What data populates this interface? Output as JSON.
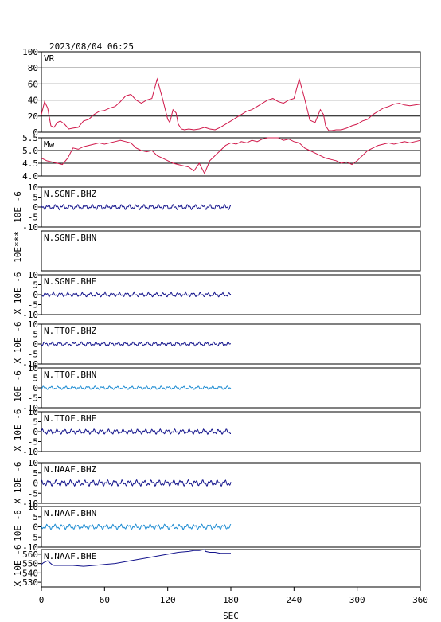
{
  "header": {
    "timestamp": "2023/08/04 06:25"
  },
  "colors": {
    "vr": "#d0184a",
    "mw": "#d0184a",
    "dark_trace": "#14148c",
    "light_trace": "#1e8cd2",
    "frame": "#000000"
  },
  "chart_data": [
    {
      "type": "line",
      "panel_label": "VR",
      "ylim": [
        0,
        100
      ],
      "y_ticks": [
        "100",
        "80",
        "60",
        "40",
        "20",
        "0"
      ],
      "grid": true,
      "x": [
        0,
        3,
        6,
        9,
        12,
        15,
        18,
        22,
        26,
        30,
        35,
        40,
        45,
        50,
        55,
        60,
        65,
        70,
        75,
        80,
        85,
        90,
        95,
        100,
        105,
        110,
        115,
        120,
        122,
        125,
        128,
        130,
        133,
        136,
        140,
        145,
        150,
        155,
        160,
        165,
        170,
        175,
        180,
        185,
        190,
        195,
        200,
        205,
        210,
        215,
        220,
        225,
        230,
        235,
        240,
        245,
        250,
        255,
        260,
        265,
        268,
        270,
        273,
        276,
        280,
        285,
        290,
        295,
        300,
        305,
        310,
        315,
        320,
        325,
        330,
        335,
        340,
        345,
        350,
        355,
        360
      ],
      "values": [
        22,
        38,
        30,
        8,
        6,
        12,
        14,
        10,
        4,
        5,
        6,
        14,
        16,
        22,
        26,
        27,
        30,
        32,
        38,
        45,
        47,
        40,
        36,
        40,
        42,
        66,
        42,
        16,
        12,
        28,
        24,
        10,
        4,
        3,
        4,
        3,
        4,
        6,
        4,
        3,
        6,
        10,
        14,
        18,
        22,
        26,
        28,
        32,
        36,
        40,
        42,
        38,
        36,
        40,
        42,
        66,
        42,
        15,
        12,
        28,
        22,
        8,
        2,
        2,
        3,
        3,
        5,
        8,
        10,
        14,
        16,
        22,
        26,
        30,
        32,
        35,
        36,
        34,
        33,
        34,
        35
      ]
    },
    {
      "type": "line",
      "panel_label": "Mw",
      "ylim": [
        4.0,
        5.5
      ],
      "y_ticks": [
        "5.5",
        "5.0",
        "4.5",
        "4.0"
      ],
      "grid": true,
      "x": [
        0,
        5,
        10,
        15,
        20,
        25,
        30,
        35,
        40,
        45,
        50,
        55,
        60,
        65,
        70,
        75,
        80,
        85,
        90,
        95,
        100,
        105,
        110,
        115,
        120,
        125,
        130,
        135,
        140,
        145,
        150,
        155,
        160,
        165,
        170,
        175,
        180,
        185,
        190,
        195,
        200,
        205,
        210,
        215,
        220,
        225,
        230,
        235,
        240,
        245,
        250,
        255,
        260,
        265,
        270,
        275,
        280,
        285,
        290,
        295,
        300,
        305,
        310,
        315,
        320,
        325,
        330,
        335,
        340,
        345,
        350,
        355,
        360
      ],
      "values": [
        4.7,
        4.6,
        4.55,
        4.5,
        4.45,
        4.7,
        5.1,
        5.05,
        5.15,
        5.2,
        5.25,
        5.3,
        5.25,
        5.3,
        5.35,
        5.4,
        5.35,
        5.3,
        5.1,
        5.0,
        4.95,
        5.0,
        4.8,
        4.7,
        4.6,
        4.5,
        4.45,
        4.4,
        4.35,
        4.2,
        4.5,
        4.1,
        4.6,
        4.8,
        5.0,
        5.2,
        5.3,
        5.25,
        5.35,
        5.3,
        5.4,
        5.35,
        5.45,
        5.5,
        5.55,
        5.5,
        5.4,
        5.45,
        5.35,
        5.3,
        5.1,
        5.0,
        4.9,
        4.8,
        4.7,
        4.65,
        4.6,
        4.5,
        4.55,
        4.45,
        4.6,
        4.8,
        5.0,
        5.1,
        5.2,
        5.25,
        5.3,
        5.25,
        5.3,
        5.35,
        5.3,
        5.35,
        5.4
      ]
    },
    {
      "type": "line",
      "panel_label": "N.SGNF.BHZ",
      "ylim": [
        -10,
        10
      ],
      "y_ticks": [
        "10",
        "5",
        "0",
        "-5",
        "-10"
      ],
      "trace": "wave",
      "trace_color": "dark",
      "amplitude": 0.6,
      "trace_end_sec": 180
    },
    {
      "type": "line",
      "panel_label": "N.SGNF.BHN",
      "ylim": [
        -10,
        10
      ],
      "y_ticks": [],
      "trace": "none"
    },
    {
      "type": "line",
      "panel_label": "N.SGNF.BHE",
      "ylim": [
        -10,
        10
      ],
      "y_ticks": [
        "10",
        "5",
        "0",
        "-5",
        "-10"
      ],
      "trace": "wave",
      "trace_color": "dark",
      "amplitude": 0.5,
      "trace_end_sec": 180
    },
    {
      "type": "line",
      "panel_label": "N.TTOF.BHZ",
      "ylim": [
        -10,
        10
      ],
      "y_ticks": [
        "10",
        "5",
        "0",
        "-5",
        "-10"
      ],
      "trace": "wave",
      "trace_color": "dark",
      "amplitude": 0.5,
      "trace_end_sec": 180
    },
    {
      "type": "line",
      "panel_label": "N.TTOF.BHN",
      "ylim": [
        -10,
        10
      ],
      "y_ticks": [
        "10",
        "5",
        "0",
        "-5",
        "-10"
      ],
      "trace": "wave",
      "trace_color": "light",
      "amplitude": 0.4,
      "trace_end_sec": 180
    },
    {
      "type": "line",
      "panel_label": "N.TTOF.BHE",
      "ylim": [
        -10,
        10
      ],
      "y_ticks": [
        "10",
        "5",
        "0",
        "-5",
        "-10"
      ],
      "trace": "wave",
      "trace_color": "dark",
      "amplitude": 0.6,
      "trace_end_sec": 180
    },
    {
      "type": "line",
      "panel_label": "N.NAAF.BHZ",
      "ylim": [
        -10,
        10
      ],
      "y_ticks": [
        "10",
        "5",
        "0",
        "-5",
        "-10"
      ],
      "trace": "wave",
      "trace_color": "dark",
      "amplitude": 0.7,
      "trace_end_sec": 180
    },
    {
      "type": "line",
      "panel_label": "N.NAAF.BHN",
      "ylim": [
        -10,
        10
      ],
      "y_ticks": [
        "10",
        "5",
        "0",
        "-5",
        "-10"
      ],
      "trace": "wave",
      "trace_color": "light",
      "amplitude": 0.6,
      "trace_end_sec": 180
    },
    {
      "type": "line",
      "panel_label": "N.NAAF.BHE",
      "ylim": [
        525,
        565
      ],
      "y_ticks": [
        "560",
        "550",
        "540",
        "530"
      ],
      "trace": "series",
      "trace_color": "dark",
      "x": [
        0,
        2,
        4,
        6,
        8,
        10,
        12,
        15,
        20,
        30,
        40,
        50,
        60,
        70,
        80,
        90,
        100,
        110,
        120,
        130,
        140,
        145,
        146,
        150,
        155,
        156,
        160,
        165,
        170,
        175,
        180
      ],
      "values": [
        549,
        551,
        552,
        553,
        551,
        549,
        548,
        548,
        548,
        548,
        547,
        548,
        549,
        550,
        552,
        554,
        556,
        558,
        560,
        562,
        563,
        564,
        564,
        564,
        565,
        563,
        562,
        562,
        561,
        561,
        561
      ]
    }
  ],
  "axis_labels": {
    "left": [
      "10E -6",
      "10E***",
      "X 10E -6",
      "X 10E -6",
      "10E -6",
      "X 10E -6",
      "X 10E -6",
      "10E -6",
      "X 10E -6"
    ],
    "x_ticks": [
      "0",
      "60",
      "120",
      "180",
      "240",
      "300",
      "360"
    ],
    "x_unit": "SEC"
  }
}
